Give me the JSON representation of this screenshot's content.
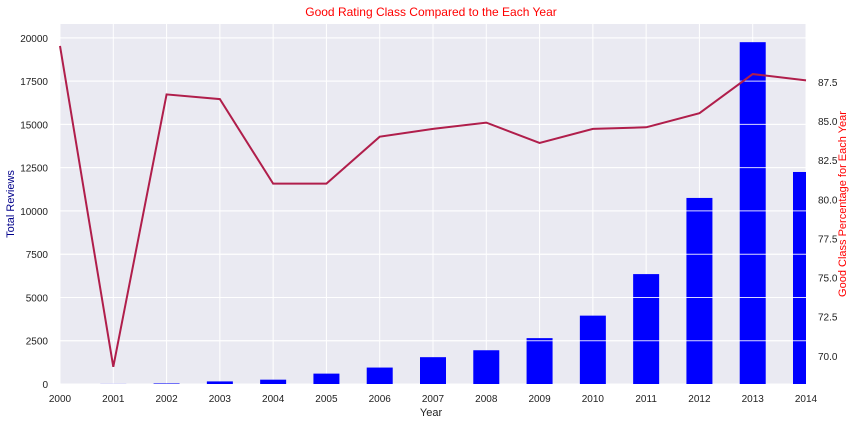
{
  "chart_data": {
    "type": "bar",
    "title": "Good Rating Class Compared to the Each Year",
    "xlabel": "Year",
    "ylabel": "Total Reviews",
    "y2label": "Good Class Percentage for Each Year",
    "categories": [
      "2000",
      "2001",
      "2002",
      "2003",
      "2004",
      "2005",
      "2006",
      "2007",
      "2008",
      "2009",
      "2010",
      "2011",
      "2012",
      "2013",
      "2014"
    ],
    "series": [
      {
        "kind": "bar",
        "axis": "left",
        "color": "#0000ff",
        "values": [
          0,
          5,
          30,
          150,
          250,
          600,
          950,
          1550,
          1950,
          2650,
          3950,
          6350,
          10750,
          19750,
          12250
        ]
      },
      {
        "kind": "line",
        "axis": "right",
        "color": "#b01e4b",
        "values": [
          89.8,
          69.3,
          86.7,
          86.4,
          81.0,
          81.0,
          84.0,
          84.5,
          84.9,
          83.6,
          84.5,
          84.6,
          85.5,
          88.0,
          87.6
        ]
      }
    ],
    "ylim": [
      0,
      20800
    ],
    "y2lim": [
      68.2,
      91.2
    ],
    "yticks": [
      0,
      2500,
      5000,
      7500,
      10000,
      12500,
      15000,
      17500,
      20000
    ],
    "yticklabels": [
      "0",
      "2500",
      "5000",
      "7500",
      "10000",
      "12500",
      "15000",
      "17500",
      "20000"
    ],
    "y2ticks": [
      70.0,
      72.5,
      75.0,
      77.5,
      80.0,
      82.5,
      85.0,
      87.5
    ],
    "y2ticklabels": [
      "70.0",
      "72.5",
      "75.0",
      "77.5",
      "80.0",
      "82.5",
      "85.0",
      "87.5"
    ],
    "grid": true,
    "background": "#eaeaf2",
    "title_color": "#ff0000",
    "ylabel_color": "#00008b",
    "y2label_color": "#ff0000"
  }
}
